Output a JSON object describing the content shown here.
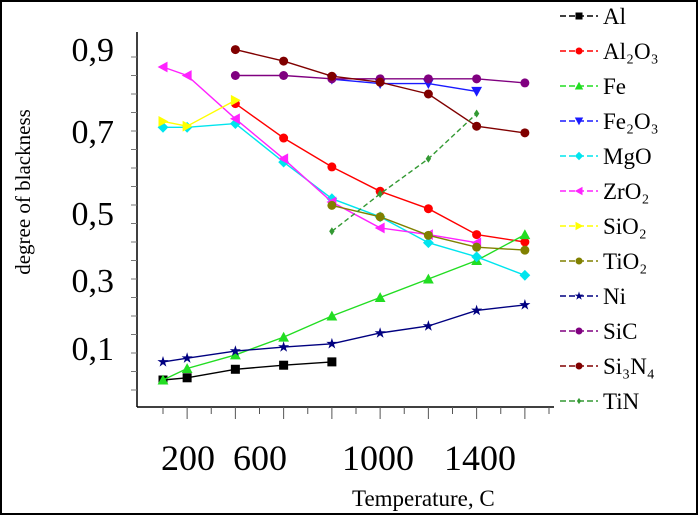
{
  "chart_data": {
    "type": "line",
    "title": "",
    "xlabel": "Temperature, C",
    "ylabel": "degree of blackness",
    "xlim": [
      0,
      1700
    ],
    "ylim": [
      -0.04,
      0.97
    ],
    "x_tick_labels": [
      "200",
      "600",
      "1000",
      "1400"
    ],
    "y_tick_labels": [
      "0,9",
      "0,7",
      "0,5",
      "0,3",
      "0,1"
    ],
    "grid": false,
    "legend_position": "right",
    "series": [
      {
        "name": "Al",
        "color": "#000000",
        "marker": "square",
        "x": [
          100,
          200,
          400,
          600,
          800
        ],
        "y": [
          0.027,
          0.033,
          0.056,
          0.067,
          0.076
        ]
      },
      {
        "name": "Al₂O₃",
        "color": "#ff0000",
        "marker": "circle",
        "x": [
          400,
          600,
          800,
          1000,
          1200,
          1400,
          1600
        ],
        "y": [
          0.774,
          0.681,
          0.603,
          0.537,
          0.49,
          0.42,
          0.4
        ]
      },
      {
        "name": "Fe",
        "color": "#22dd22",
        "marker": "triangle-up",
        "x": [
          100,
          200,
          400,
          600,
          800,
          1000,
          1200,
          1400,
          1600
        ],
        "y": [
          0.027,
          0.058,
          0.095,
          0.143,
          0.2,
          0.25,
          0.3,
          0.35,
          0.42
        ]
      },
      {
        "name": "Fe₂O₃",
        "color": "#1a1aff",
        "marker": "triangle-down",
        "x": [
          800,
          1000,
          1200,
          1400
        ],
        "y": [
          0.84,
          0.828,
          0.828,
          0.807
        ]
      },
      {
        "name": "MgO",
        "color": "#00e5ee",
        "marker": "diamond",
        "x": [
          100,
          200,
          400,
          600,
          800,
          1000,
          1200,
          1400,
          1600
        ],
        "y": [
          0.71,
          0.71,
          0.72,
          0.616,
          0.517,
          0.468,
          0.398,
          0.36,
          0.31
        ]
      },
      {
        "name": "ZrO₂",
        "color": "#ff22ff",
        "marker": "triangle-left",
        "x": [
          100,
          200,
          400,
          600,
          800,
          1000,
          1200,
          1400
        ],
        "y": [
          0.873,
          0.85,
          0.733,
          0.625,
          0.508,
          0.438,
          0.42,
          0.398
        ]
      },
      {
        "name": "SiO₂",
        "color": "#ffff00",
        "marker": "triangle-right",
        "x": [
          100,
          200,
          400
        ],
        "y": [
          0.726,
          0.713,
          0.783
        ]
      },
      {
        "name": "TiO₂",
        "color": "#808000",
        "marker": "circle",
        "x": [
          800,
          1000,
          1200,
          1400,
          1600
        ],
        "y": [
          0.499,
          0.468,
          0.418,
          0.386,
          0.378
        ]
      },
      {
        "name": "Ni",
        "color": "#000080",
        "marker": "star",
        "x": [
          100,
          200,
          400,
          600,
          800,
          1000,
          1200,
          1400,
          1600
        ],
        "y": [
          0.076,
          0.086,
          0.105,
          0.116,
          0.125,
          0.154,
          0.173,
          0.215,
          0.23
        ]
      },
      {
        "name": "SiC",
        "color": "#800080",
        "marker": "circle",
        "x": [
          400,
          600,
          800,
          1000,
          1200,
          1400,
          1600
        ],
        "y": [
          0.85,
          0.85,
          0.841,
          0.841,
          0.841,
          0.841,
          0.83
        ]
      },
      {
        "name": "Si₃N₄",
        "color": "#800000",
        "marker": "circle",
        "x": [
          400,
          600,
          800,
          1000,
          1200,
          1400,
          1600
        ],
        "y": [
          0.92,
          0.889,
          0.848,
          0.832,
          0.8,
          0.713,
          0.695
        ]
      },
      {
        "name": "TiN",
        "color": "#339933",
        "marker": "diamond-small",
        "x": [
          800,
          1000,
          1200,
          1400
        ],
        "y": [
          0.429,
          0.53,
          0.625,
          0.747
        ]
      }
    ]
  }
}
